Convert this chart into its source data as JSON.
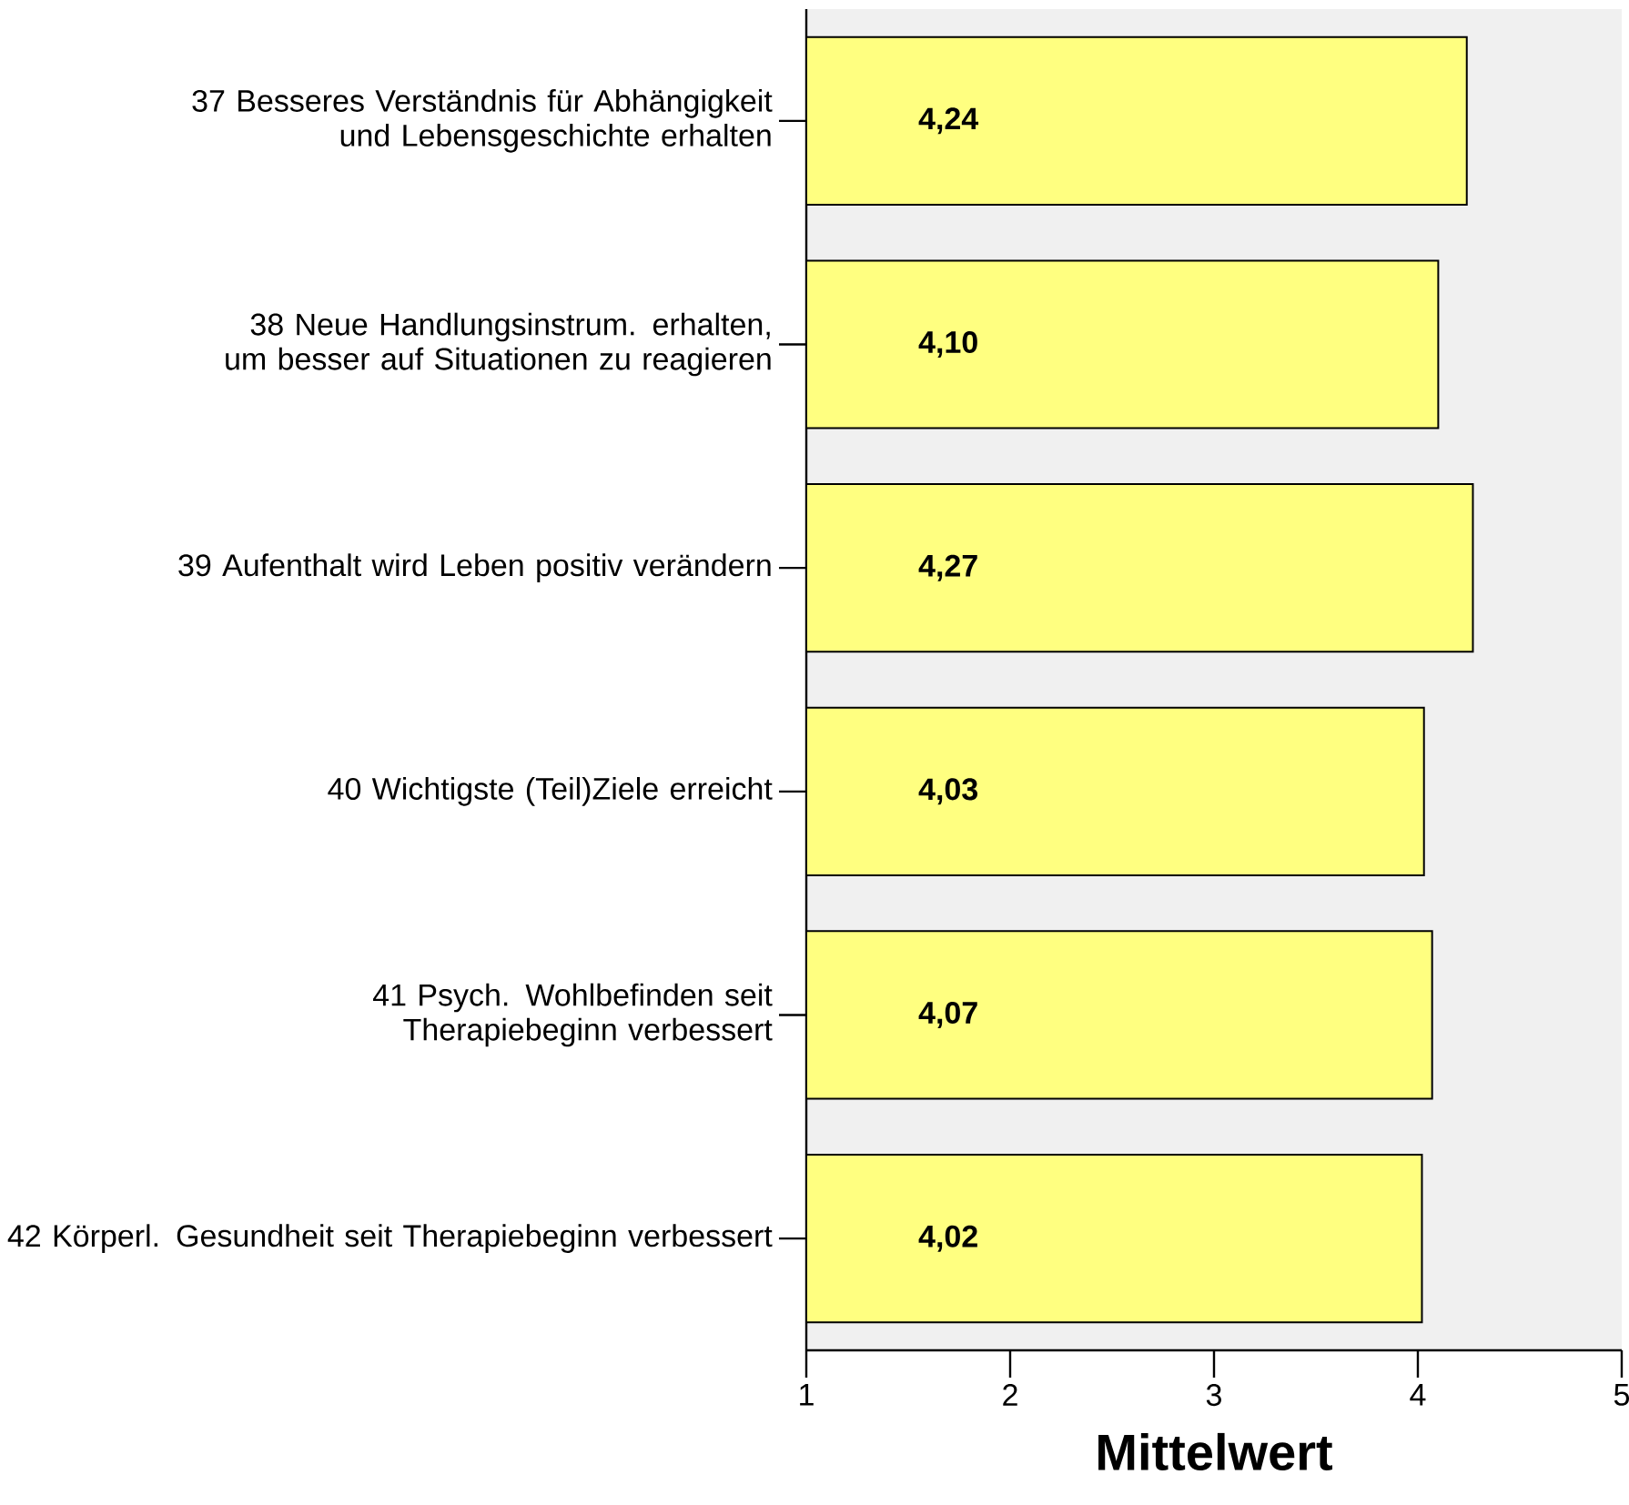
{
  "chart_data": {
    "type": "bar",
    "orientation": "horizontal",
    "xlabel": "Mittelwert",
    "categories": [
      "37 Besseres Verständnis für Abhängigkeit und Lebensgeschichte erhalten",
      "38 Neue Handlungsinstrum. erhalten, um besser auf Situationen zu reagieren",
      "39 Aufenthalt wird Leben positiv verändern",
      "40 Wichtigste (Teil)Ziele erreicht",
      "41 Psych. Wohlbefinden seit Therapiebeginn verbessert",
      "42 Körperl. Gesundheit seit Therapiebeginn verbessert"
    ],
    "values": [
      4.24,
      4.1,
      4.27,
      4.03,
      4.07,
      4.02
    ],
    "value_labels": [
      "4,24",
      "4,10",
      "4,27",
      "4,03",
      "4,07",
      "4,02"
    ],
    "color": "#ffff80",
    "xlim": [
      1,
      5
    ],
    "xticks": [
      1,
      2,
      3,
      4,
      5
    ]
  }
}
